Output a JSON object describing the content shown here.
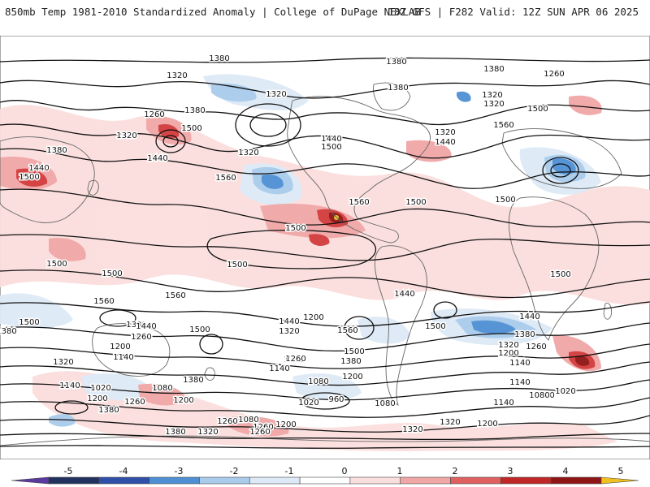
{
  "header": {
    "title_left": "850mb Temp 1981-2010 Standardized Anomaly | College of DuPage NEXLAB",
    "title_right": "18Z GFS | F282 Valid: 12Z SUN APR 06 2025"
  },
  "map": {
    "contour_labels": [
      "1380",
      "1380",
      "1380",
      "1320",
      "1320",
      "1260",
      "1260",
      "1380",
      "1320",
      "1320",
      "1380",
      "1500",
      "1440",
      "1440",
      "1500",
      "1560",
      "1500",
      "1320",
      "1320",
      "1380",
      "1320",
      "1440",
      "1500",
      "1560",
      "1500",
      "1440",
      "1500",
      "1560",
      "1500",
      "1560",
      "1500",
      "1380",
      "1500",
      "1560",
      "1500",
      "1500",
      "1380",
      "1440",
      "1260",
      "1200",
      "1140",
      "1500",
      "1320",
      "1440",
      "1560",
      "1260",
      "1140",
      "1380",
      "1500",
      "1440",
      "1380",
      "1320",
      "1200",
      "1260",
      "1140",
      "1320",
      "1380",
      "1020",
      "1080",
      "1140",
      "1200",
      "1260",
      "1380",
      "1080",
      "1020",
      "1200",
      "1260",
      "1380",
      "960",
      "1020",
      "1080",
      "1140",
      "1200",
      "1260",
      "1020",
      "1080",
      "1320",
      "1260",
      "1200",
      "1380",
      "1320",
      "1260",
      "1320",
      "1200",
      "1260",
      "1080",
      "1140",
      "1200",
      "1440",
      "1500",
      "1500",
      "1500"
    ],
    "colors": {
      "strong_cold": "#2f4fa8",
      "cold": "#4e8fd4",
      "cool": "#a9cbec",
      "faint_cool": "#dde9f6",
      "faint_warm": "#fbdedd",
      "warm": "#f1a6a6",
      "hot": "#d23b3b",
      "strong_hot": "#8f1414",
      "extreme": "#f0c020",
      "coast": "#666666",
      "contour": "#111111"
    }
  },
  "colorbar": {
    "tick_labels": [
      "-5",
      "-4",
      "-3",
      "-2",
      "-1",
      "0",
      "1",
      "2",
      "3",
      "4",
      "5"
    ],
    "segments": [
      "#5a3aa0",
      "#22325f",
      "#2f4fa8",
      "#4e8fd4",
      "#a9cbec",
      "#dde9f6",
      "#ffffff",
      "#fbdedd",
      "#f1a6a6",
      "#e06060",
      "#c02828",
      "#8f1414",
      "#f0c020"
    ]
  }
}
